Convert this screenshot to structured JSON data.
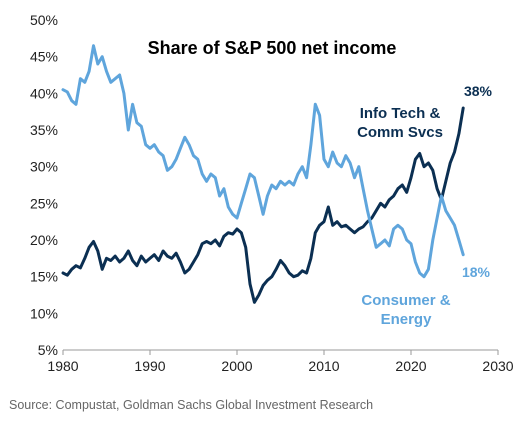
{
  "chart_data": {
    "type": "line",
    "title": "Share of S&P 500 net income",
    "xlabel": "",
    "ylabel": "",
    "xlim": [
      1980,
      2030
    ],
    "ylim": [
      5,
      50
    ],
    "x_ticks": [
      "1980",
      "1990",
      "2000",
      "2010",
      "2020",
      "2030"
    ],
    "y_ticks": [
      "5%",
      "10%",
      "15%",
      "20%",
      "25%",
      "30%",
      "35%",
      "40%",
      "45%",
      "50%"
    ],
    "grid": false,
    "series": [
      {
        "name": "Info Tech & Comm Svcs",
        "color": "#0b2f52",
        "end_label": "38%",
        "points": [
          [
            1980,
            15.5
          ],
          [
            1980.5,
            15.2
          ],
          [
            1981,
            16
          ],
          [
            1981.5,
            16.5
          ],
          [
            1982,
            16.2
          ],
          [
            1982.5,
            17.5
          ],
          [
            1983,
            19
          ],
          [
            1983.5,
            19.8
          ],
          [
            1984,
            18.5
          ],
          [
            1984.5,
            16
          ],
          [
            1985,
            17.5
          ],
          [
            1985.5,
            17.2
          ],
          [
            1986,
            17.8
          ],
          [
            1986.5,
            17
          ],
          [
            1987,
            17.5
          ],
          [
            1987.5,
            18.5
          ],
          [
            1988,
            17.2
          ],
          [
            1988.5,
            16.5
          ],
          [
            1989,
            17.8
          ],
          [
            1989.5,
            17
          ],
          [
            1990,
            17.5
          ],
          [
            1990.5,
            18
          ],
          [
            1991,
            17.2
          ],
          [
            1991.5,
            18.5
          ],
          [
            1992,
            17.8
          ],
          [
            1992.5,
            17.5
          ],
          [
            1993,
            18.2
          ],
          [
            1993.5,
            17
          ],
          [
            1994,
            15.5
          ],
          [
            1994.5,
            16
          ],
          [
            1995,
            17
          ],
          [
            1995.5,
            18
          ],
          [
            1996,
            19.5
          ],
          [
            1996.5,
            19.8
          ],
          [
            1997,
            19.5
          ],
          [
            1997.5,
            20
          ],
          [
            1998,
            19.2
          ],
          [
            1998.5,
            20.5
          ],
          [
            1999,
            21
          ],
          [
            1999.5,
            20.8
          ],
          [
            2000,
            21.5
          ],
          [
            2000.5,
            21
          ],
          [
            2001,
            19
          ],
          [
            2001.5,
            14
          ],
          [
            2002,
            11.5
          ],
          [
            2002.5,
            12.5
          ],
          [
            2003,
            13.8
          ],
          [
            2003.5,
            14.5
          ],
          [
            2004,
            15
          ],
          [
            2004.5,
            16
          ],
          [
            2005,
            17.2
          ],
          [
            2005.5,
            16.5
          ],
          [
            2006,
            15.5
          ],
          [
            2006.5,
            15
          ],
          [
            2007,
            15.2
          ],
          [
            2007.5,
            15.8
          ],
          [
            2008,
            15.5
          ],
          [
            2008.5,
            17.5
          ],
          [
            2009,
            21
          ],
          [
            2009.5,
            22
          ],
          [
            2010,
            22.5
          ],
          [
            2010.5,
            24.5
          ],
          [
            2011,
            22
          ],
          [
            2011.5,
            22.5
          ],
          [
            2012,
            21.8
          ],
          [
            2012.5,
            22
          ],
          [
            2013,
            21.5
          ],
          [
            2013.5,
            21
          ],
          [
            2014,
            21.5
          ],
          [
            2014.5,
            21.8
          ],
          [
            2015,
            22.5
          ],
          [
            2015.5,
            23
          ],
          [
            2016,
            24
          ],
          [
            2016.5,
            25
          ],
          [
            2017,
            24.5
          ],
          [
            2017.5,
            25.5
          ],
          [
            2018,
            26
          ],
          [
            2018.5,
            27
          ],
          [
            2019,
            27.5
          ],
          [
            2019.5,
            26.5
          ],
          [
            2020,
            28.5
          ],
          [
            2020.5,
            31
          ],
          [
            2021,
            31.8
          ],
          [
            2021.5,
            30
          ],
          [
            2022,
            30.5
          ],
          [
            2022.5,
            29.5
          ],
          [
            2023,
            27
          ],
          [
            2023.5,
            25.5
          ],
          [
            2024,
            28
          ],
          [
            2024.5,
            30.5
          ],
          [
            2025,
            32
          ],
          [
            2025.5,
            34.5
          ],
          [
            2026,
            38
          ]
        ]
      },
      {
        "name": "Consumer & Energy",
        "color": "#5fa5dc",
        "end_label": "18%",
        "points": [
          [
            1980,
            40.5
          ],
          [
            1980.5,
            40.2
          ],
          [
            1981,
            39
          ],
          [
            1981.5,
            38.5
          ],
          [
            1982,
            42
          ],
          [
            1982.5,
            41.5
          ],
          [
            1983,
            43
          ],
          [
            1983.5,
            46.5
          ],
          [
            1984,
            44
          ],
          [
            1984.5,
            45
          ],
          [
            1985,
            43
          ],
          [
            1985.5,
            41.5
          ],
          [
            1986,
            42
          ],
          [
            1986.5,
            42.5
          ],
          [
            1987,
            40
          ],
          [
            1987.5,
            35
          ],
          [
            1988,
            38.5
          ],
          [
            1988.5,
            36
          ],
          [
            1989,
            35.5
          ],
          [
            1989.5,
            33
          ],
          [
            1990,
            32.5
          ],
          [
            1990.5,
            33
          ],
          [
            1991,
            32
          ],
          [
            1991.5,
            31.5
          ],
          [
            1992,
            29.5
          ],
          [
            1992.5,
            30
          ],
          [
            1993,
            31
          ],
          [
            1993.5,
            32.5
          ],
          [
            1994,
            34
          ],
          [
            1994.5,
            33
          ],
          [
            1995,
            31.5
          ],
          [
            1995.5,
            31
          ],
          [
            1996,
            29
          ],
          [
            1996.5,
            28
          ],
          [
            1997,
            29
          ],
          [
            1997.5,
            28.5
          ],
          [
            1998,
            26
          ],
          [
            1998.5,
            27
          ],
          [
            1999,
            24.5
          ],
          [
            1999.5,
            23.5
          ],
          [
            2000,
            23
          ],
          [
            2000.5,
            25
          ],
          [
            2001,
            27
          ],
          [
            2001.5,
            29
          ],
          [
            2002,
            28.5
          ],
          [
            2002.5,
            26
          ],
          [
            2003,
            23.5
          ],
          [
            2003.5,
            26
          ],
          [
            2004,
            27.5
          ],
          [
            2004.5,
            27
          ],
          [
            2005,
            28
          ],
          [
            2005.5,
            27.5
          ],
          [
            2006,
            28
          ],
          [
            2006.5,
            27.5
          ],
          [
            2007,
            29
          ],
          [
            2007.5,
            30
          ],
          [
            2008,
            28.5
          ],
          [
            2008.5,
            33
          ],
          [
            2009,
            38.5
          ],
          [
            2009.5,
            37
          ],
          [
            2010,
            31
          ],
          [
            2010.5,
            30
          ],
          [
            2011,
            32
          ],
          [
            2011.5,
            30.5
          ],
          [
            2012,
            30
          ],
          [
            2012.5,
            31.5
          ],
          [
            2013,
            30.5
          ],
          [
            2013.5,
            28.5
          ],
          [
            2014,
            30
          ],
          [
            2014.5,
            27
          ],
          [
            2015,
            24
          ],
          [
            2015.5,
            21.5
          ],
          [
            2016,
            19
          ],
          [
            2016.5,
            19.5
          ],
          [
            2017,
            20
          ],
          [
            2017.5,
            19.2
          ],
          [
            2018,
            21.5
          ],
          [
            2018.5,
            22
          ],
          [
            2019,
            21.5
          ],
          [
            2019.5,
            20
          ],
          [
            2020,
            19.5
          ],
          [
            2020.5,
            17
          ],
          [
            2021,
            15.5
          ],
          [
            2021.5,
            15
          ],
          [
            2022,
            16
          ],
          [
            2022.5,
            20
          ],
          [
            2023,
            23
          ],
          [
            2023.5,
            26
          ],
          [
            2024,
            24
          ],
          [
            2024.5,
            23
          ],
          [
            2025,
            22
          ],
          [
            2025.5,
            20
          ],
          [
            2026,
            18
          ]
        ]
      }
    ],
    "annotations": {
      "info_tech_lines": [
        "Info Tech &",
        "Comm Svcs"
      ],
      "consumer_lines": [
        "Consumer &",
        "Energy"
      ]
    }
  },
  "source": "Source: Compustat, Goldman Sachs Global Investment Research"
}
